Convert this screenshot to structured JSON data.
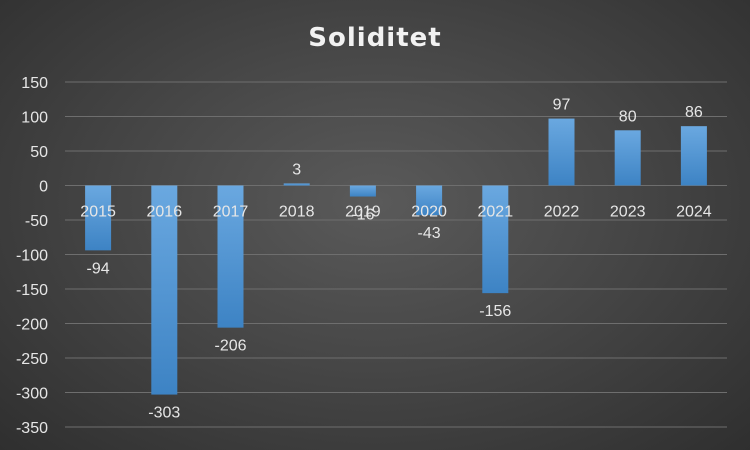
{
  "chart_data": {
    "type": "bar",
    "title": "Soliditet",
    "xlabel": "",
    "ylabel": "",
    "categories": [
      "2015",
      "2016",
      "2017",
      "2018",
      "2019",
      "2020",
      "2021",
      "2022",
      "2023",
      "2024"
    ],
    "values": [
      -94,
      -303,
      -206,
      3,
      -16,
      -43,
      -156,
      97,
      80,
      86
    ],
    "data_labels": [
      "-94",
      "-303",
      "-206",
      "3",
      "-16",
      "-43",
      "-156",
      "97",
      "80",
      "86"
    ],
    "ylim": [
      -350,
      150
    ],
    "yticks": [
      150,
      100,
      50,
      0,
      -50,
      -100,
      -150,
      -200,
      -250,
      -300,
      -350
    ],
    "grid": true,
    "legend": "none",
    "colors": {
      "bar_top": "#5b9bd5",
      "bar_bottom": "#3f86c8",
      "text": "#e6e6e6",
      "title": "#f2f2f2",
      "grid": "#6e6e6e"
    }
  }
}
